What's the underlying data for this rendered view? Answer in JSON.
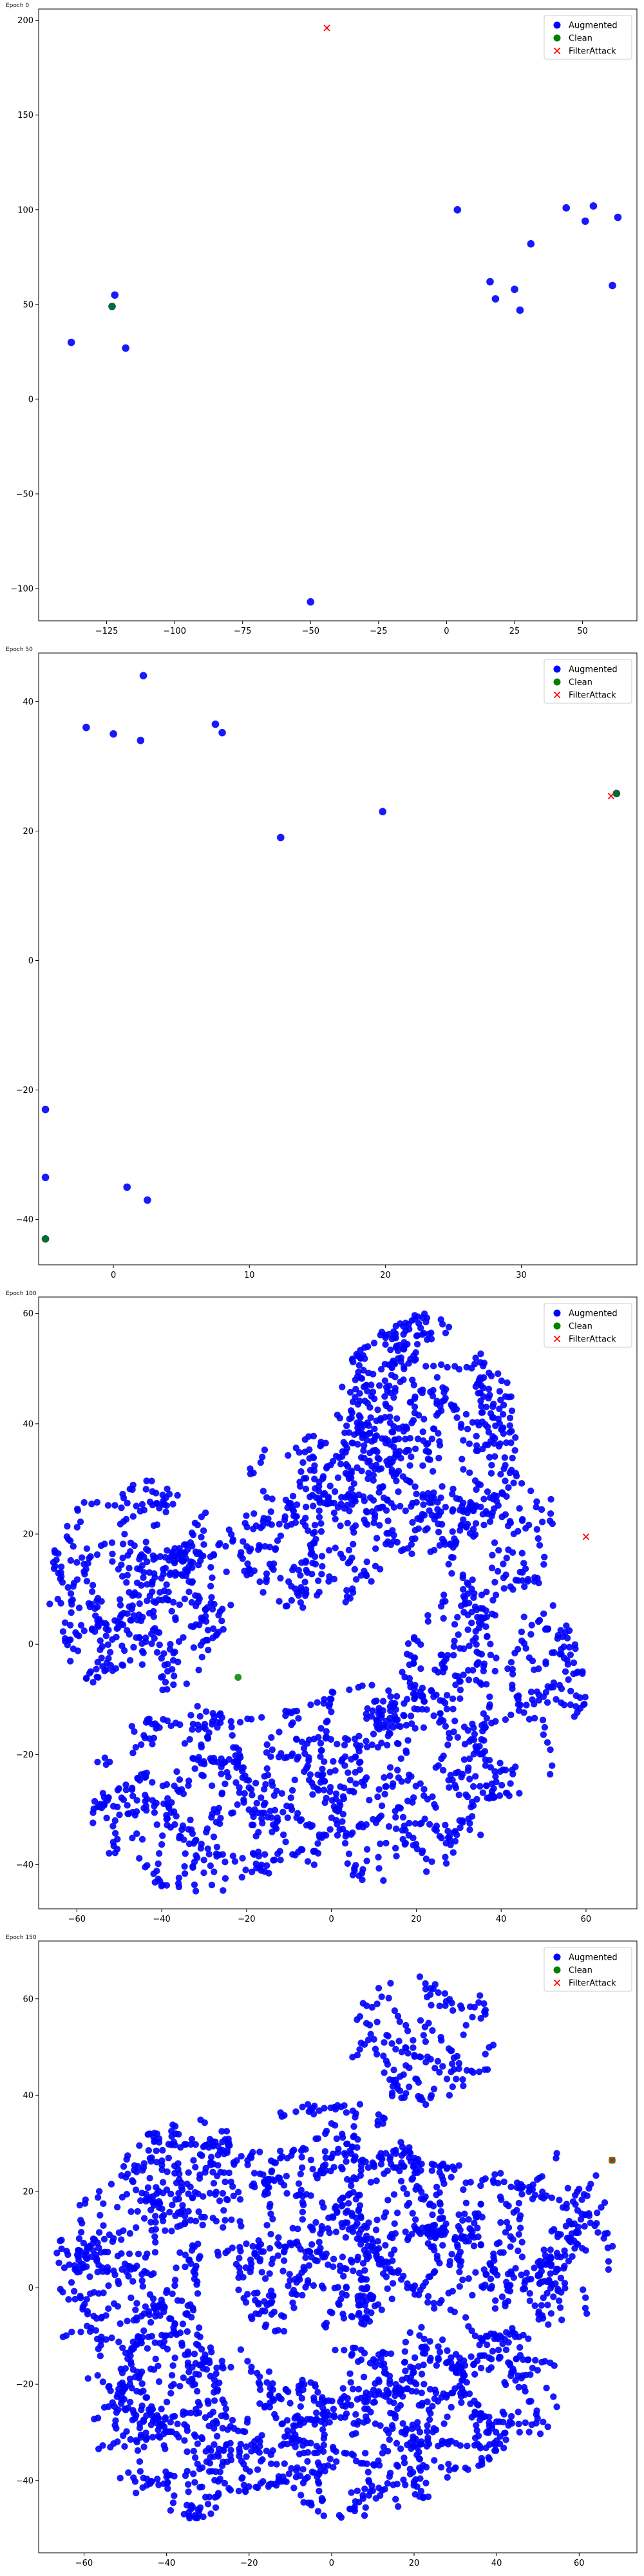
{
  "legend_labels": [
    "Augmented",
    "Clean",
    "FilterAttack"
  ],
  "colors": {
    "augmented": "#0000ff",
    "clean": "#008000",
    "filter": "#ff0000"
  },
  "chart_data": [
    {
      "type": "scatter",
      "title": "Epoch 0",
      "legend": "top-right",
      "grid": false,
      "xlim": [
        -150,
        70
      ],
      "ylim": [
        -117,
        206
      ],
      "xticks": [
        -125,
        -100,
        -75,
        -50,
        -25,
        0,
        25,
        50
      ],
      "yticks": [
        -100,
        -50,
        0,
        50,
        100,
        150,
        200
      ],
      "tick_labels_x": [
        "−125",
        "−100",
        "−75",
        "−50",
        "−25",
        "0",
        "25",
        "50"
      ],
      "tick_labels_y": [
        "−100",
        "−50",
        "0",
        "50",
        "100",
        "150",
        "200"
      ],
      "series": [
        {
          "name": "Augmented",
          "marker": "circle",
          "points": [
            [
              -138,
              30
            ],
            [
              -122,
              55
            ],
            [
              -123,
              49
            ],
            [
              -118,
              27
            ],
            [
              -50,
              -107
            ],
            [
              4,
              100
            ],
            [
              16,
              62
            ],
            [
              18,
              53
            ],
            [
              25,
              58
            ],
            [
              27,
              47
            ],
            [
              31,
              82
            ],
            [
              44,
              101
            ],
            [
              51,
              94
            ],
            [
              54,
              102
            ],
            [
              61,
              60
            ],
            [
              63,
              96
            ]
          ],
          "cluster": null
        },
        {
          "name": "Clean",
          "marker": "circle",
          "points": [
            [
              -123,
              49
            ]
          ]
        },
        {
          "name": "FilterAttack",
          "marker": "x",
          "points": [
            [
              -44,
              196
            ]
          ]
        }
      ]
    },
    {
      "type": "scatter",
      "title": "Epoch 50",
      "legend": "top-right",
      "grid": false,
      "xlim": [
        -5.5,
        38.5
      ],
      "ylim": [
        -47,
        47.5
      ],
      "xticks": [
        0,
        10,
        20,
        30
      ],
      "yticks": [
        -40,
        -20,
        0,
        20,
        40
      ],
      "tick_labels_x": [
        "0",
        "10",
        "20",
        "30"
      ],
      "tick_labels_y": [
        "−40",
        "−20",
        "0",
        "20",
        "40"
      ],
      "series": [
        {
          "name": "Augmented",
          "marker": "circle",
          "points": [
            [
              -5,
              -23
            ],
            [
              -5,
              -33.5
            ],
            [
              -5,
              -43
            ],
            [
              -2,
              36
            ],
            [
              0,
              35
            ],
            [
              1,
              -35
            ],
            [
              2,
              34
            ],
            [
              2.2,
              44
            ],
            [
              2.5,
              -37
            ],
            [
              7.5,
              36.5
            ],
            [
              8,
              35.2
            ],
            [
              12.3,
              19
            ],
            [
              19.8,
              23
            ],
            [
              37,
              25.8
            ]
          ]
        },
        {
          "name": "Clean",
          "marker": "circle",
          "points": [
            [
              -5,
              -43
            ],
            [
              37,
              25.8
            ]
          ]
        },
        {
          "name": "FilterAttack",
          "marker": "x",
          "points": [
            [
              36.6,
              25.4
            ]
          ]
        }
      ]
    },
    {
      "type": "scatter",
      "title": "Epoch 100",
      "legend": "top-right",
      "grid": false,
      "xlim": [
        -69,
        72
      ],
      "ylim": [
        -48,
        63
      ],
      "xticks": [
        -60,
        -40,
        -20,
        0,
        20,
        40,
        60
      ],
      "yticks": [
        -40,
        -20,
        0,
        20,
        40,
        60
      ],
      "tick_labels_x": [
        "−60",
        "−40",
        "−20",
        "0",
        "20",
        "40",
        "60"
      ],
      "tick_labels_y": [
        "−40",
        "−20",
        "0",
        "20",
        "40",
        "60"
      ],
      "series": [
        {
          "name": "Augmented",
          "marker": "circle",
          "points": [],
          "cluster": {
            "seed": 11,
            "count": 2400,
            "region": "pentagon",
            "radius": 0.9
          }
        },
        {
          "name": "Clean",
          "marker": "circle",
          "points": [
            [
              -22,
              -6
            ]
          ]
        },
        {
          "name": "FilterAttack",
          "marker": "x",
          "points": [
            [
              60,
              19.5
            ]
          ]
        }
      ]
    },
    {
      "type": "scatter",
      "title": "Epoch 150",
      "legend": "top-right",
      "grid": false,
      "xlim": [
        -71,
        74
      ],
      "ylim": [
        -55,
        72
      ],
      "xticks": [
        -60,
        -40,
        -20,
        0,
        20,
        40,
        60
      ],
      "yticks": [
        -40,
        -20,
        0,
        20,
        40,
        60
      ],
      "tick_labels_x": [
        "−60",
        "−40",
        "−20",
        "0",
        "20",
        "40",
        "60"
      ],
      "tick_labels_y": [
        "−40",
        "−20",
        "0",
        "20",
        "40",
        "60"
      ],
      "series": [
        {
          "name": "Augmented",
          "marker": "circle",
          "points": [],
          "cluster": {
            "seed": 23,
            "count": 2600,
            "region": "blob",
            "radius": 0.9
          }
        },
        {
          "name": "Clean",
          "marker": "circle",
          "points": [
            [
              68,
              26.5
            ]
          ]
        },
        {
          "name": "FilterAttack",
          "marker": "x",
          "points": [
            [
              68,
              26.5
            ]
          ]
        }
      ]
    }
  ]
}
